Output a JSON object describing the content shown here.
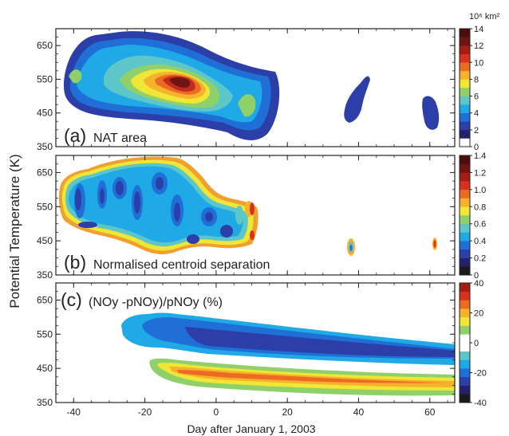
{
  "figure": {
    "xlabel": "Day after January 1, 2003",
    "ylabel": "Potential Temperature  (K)"
  },
  "chart_data": [
    {
      "type": "heatmap",
      "panel_letter": "(a)",
      "title": "NAT area",
      "x_ticks": [
        -40,
        -20,
        0,
        20,
        40,
        60
      ],
      "xlim": [
        -45,
        67
      ],
      "y_ticks": [
        350,
        450,
        550,
        650
      ],
      "ylim": [
        350,
        700
      ],
      "colorbar": {
        "unit": "10⁶ km²",
        "ticks": [
          "0",
          "2",
          "4",
          "6",
          "8",
          "10",
          "12",
          "14"
        ],
        "range": [
          0,
          14
        ]
      },
      "features": [
        {
          "x": -12,
          "y": 545,
          "value": 14
        },
        {
          "x": -22,
          "y": 560,
          "value": 10
        },
        {
          "x": -35,
          "y": 570,
          "value": 6
        },
        {
          "x": 8,
          "y": 470,
          "value": 7
        },
        {
          "x": 37,
          "y": 480,
          "value": 3
        },
        {
          "x": 60,
          "y": 470,
          "value": 3
        }
      ]
    },
    {
      "type": "heatmap",
      "panel_letter": "(b)",
      "title": "Normalised centroid separation",
      "x_ticks": [
        -40,
        -20,
        0,
        20,
        40,
        60
      ],
      "xlim": [
        -45,
        67
      ],
      "y_ticks": [
        350,
        450,
        550,
        650
      ],
      "ylim": [
        350,
        700
      ],
      "colorbar": {
        "unit": "",
        "ticks": [
          "0",
          "0.2",
          "0.4",
          "0.6",
          "0.8",
          "1.0",
          "1.2",
          "1.4"
        ],
        "range": [
          0,
          1.4
        ]
      },
      "features": [
        {
          "x": -20,
          "y": 560,
          "value": 0.3
        },
        {
          "x": 0,
          "y": 520,
          "value": 0.4
        },
        {
          "x": 10,
          "y": 500,
          "value": 1.2
        },
        {
          "x": 37,
          "y": 420,
          "value": 0.6
        },
        {
          "x": 60,
          "y": 430,
          "value": 1.4
        }
      ]
    },
    {
      "type": "heatmap",
      "panel_letter": "(c)",
      "title": "(NOy -pNOy)/pNOy  (%)",
      "x_ticks": [
        -40,
        -20,
        0,
        20,
        40,
        60
      ],
      "xlim": [
        -45,
        67
      ],
      "y_ticks": [
        350,
        450,
        550,
        650
      ],
      "ylim": [
        350,
        700
      ],
      "colorbar": {
        "unit": "",
        "ticks": [
          "-40",
          "-20",
          "0",
          "20",
          "40"
        ],
        "range": [
          -40,
          40
        ]
      },
      "features": [
        {
          "x": 10,
          "y": 520,
          "value": -30
        },
        {
          "x": 10,
          "y": 415,
          "value": 18
        }
      ]
    }
  ]
}
